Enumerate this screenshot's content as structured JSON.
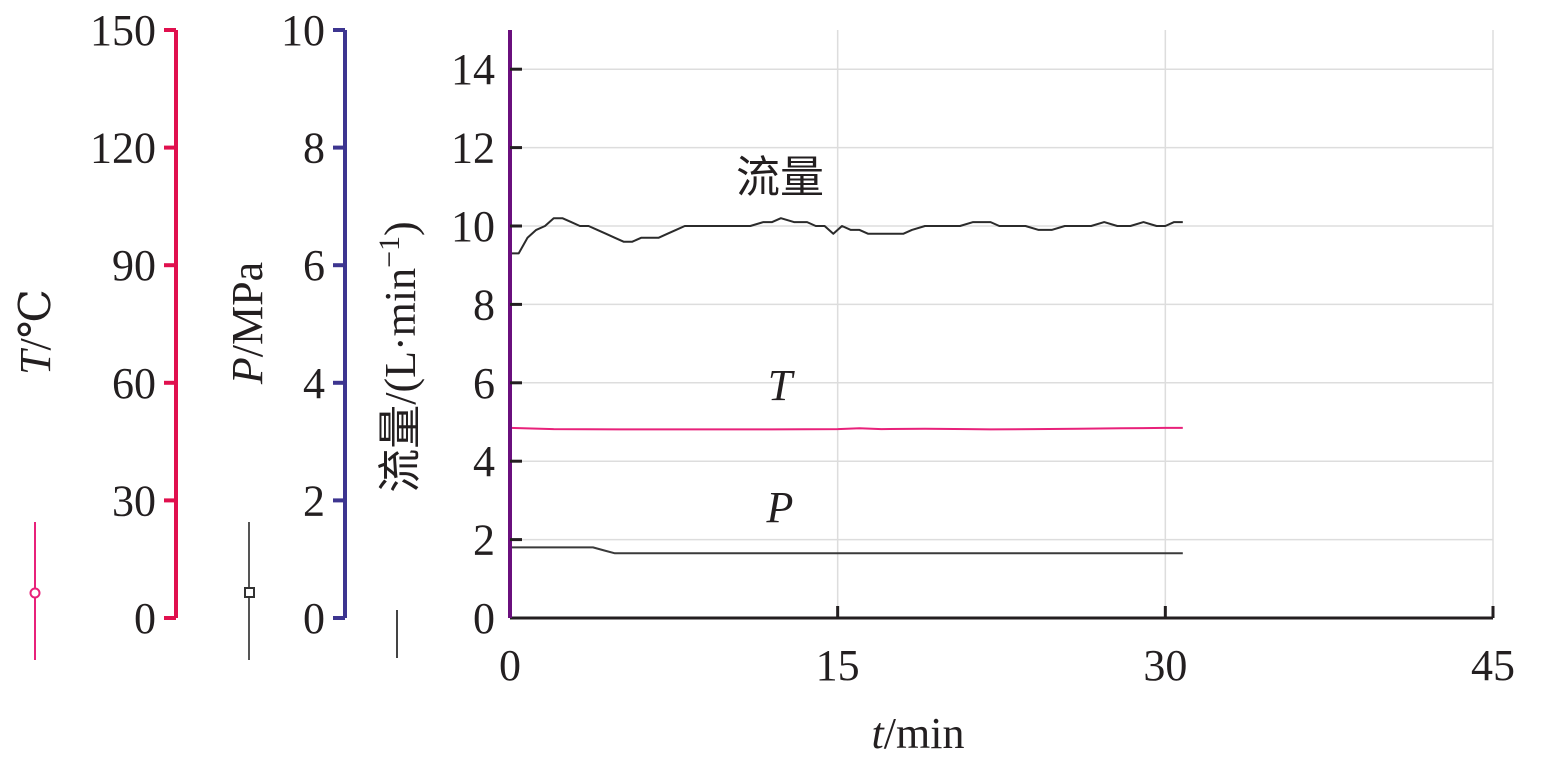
{
  "colors": {
    "T_axis": "#e0104e",
    "P_axis": "#3d3590",
    "flow_axis": "#6a0f7d",
    "T_line": "#e8217a",
    "P_line": "#3a3a3a",
    "flow_line": "#2b2b2b",
    "grid": "#dddddd"
  },
  "chart_data": {
    "type": "line",
    "title": "",
    "grid": true,
    "xlabel": {
      "symbol": "t",
      "unit": "/min"
    },
    "xlim": [
      0,
      45
    ],
    "xticks": [
      "0",
      "15",
      "30",
      "45"
    ],
    "axes": {
      "T": {
        "symbol": "T",
        "unit": "/℃",
        "ylim": [
          0,
          150
        ],
        "ticks": [
          "0",
          "30",
          "60",
          "90",
          "120",
          "150"
        ],
        "legend_marker": "circle"
      },
      "P": {
        "symbol": "P",
        "unit": "/MPa",
        "ylim": [
          0,
          10
        ],
        "ticks": [
          "0",
          "2",
          "4",
          "6",
          "8",
          "10"
        ],
        "legend_marker": "square"
      },
      "flow": {
        "label": "流量/(L·min",
        "exp": "−1",
        "close": ")",
        "ylim": [
          0,
          15
        ],
        "ticks": [
          "0",
          "2",
          "4",
          "6",
          "8",
          "10",
          "12",
          "14"
        ],
        "legend_marker": "none"
      }
    },
    "series": [
      {
        "name": "流量",
        "axis": "flow",
        "x": [
          0,
          0.4,
          0.8,
          1.2,
          1.6,
          2.0,
          2.4,
          2.8,
          3.2,
          3.6,
          4.0,
          4.4,
          4.8,
          5.2,
          5.6,
          6.0,
          6.4,
          6.8,
          7.2,
          7.6,
          8.0,
          8.4,
          9.0,
          10.0,
          11.0,
          11.6,
          12.0,
          12.4,
          13.0,
          13.6,
          14.0,
          14.4,
          14.8,
          15.2,
          15.6,
          16.0,
          16.4,
          17.0,
          17.6,
          18.0,
          18.4,
          19.0,
          19.6,
          20.0,
          20.6,
          21.2,
          21.6,
          22.0,
          22.4,
          23.0,
          23.6,
          24.2,
          24.8,
          25.4,
          26.0,
          26.6,
          27.2,
          27.8,
          28.4,
          29.0,
          29.6,
          30.0,
          30.4,
          30.8
        ],
        "values": [
          9.3,
          9.3,
          9.7,
          9.9,
          10.0,
          10.2,
          10.2,
          10.1,
          10.0,
          10.0,
          9.9,
          9.8,
          9.7,
          9.6,
          9.6,
          9.7,
          9.7,
          9.7,
          9.8,
          9.9,
          10.0,
          10.0,
          10.0,
          10.0,
          10.0,
          10.1,
          10.1,
          10.2,
          10.1,
          10.1,
          10.0,
          10.0,
          9.8,
          10.0,
          9.9,
          9.9,
          9.8,
          9.8,
          9.8,
          9.8,
          9.9,
          10.0,
          10.0,
          10.0,
          10.0,
          10.1,
          10.1,
          10.1,
          10.0,
          10.0,
          10.0,
          9.9,
          9.9,
          10.0,
          10.0,
          10.0,
          10.1,
          10.0,
          10.0,
          10.1,
          10.0,
          10.0,
          10.1,
          10.1
        ]
      },
      {
        "name": "T",
        "axis": "T",
        "x": [
          0,
          2,
          5,
          8,
          12,
          15,
          16,
          17,
          19,
          21,
          22,
          24,
          26,
          28,
          30,
          30.8
        ],
        "values": [
          48.5,
          48.2,
          48.1,
          48.1,
          48.1,
          48.2,
          48.4,
          48.2,
          48.3,
          48.2,
          48.1,
          48.2,
          48.3,
          48.4,
          48.5,
          48.5
        ]
      },
      {
        "name": "P",
        "axis": "P",
        "x": [
          0,
          2,
          3.8,
          4.3,
          4.8,
          5.5,
          10,
          15,
          20,
          25,
          30,
          30.8
        ],
        "values": [
          1.2,
          1.2,
          1.2,
          1.15,
          1.1,
          1.1,
          1.1,
          1.1,
          1.1,
          1.1,
          1.1,
          1.1
        ]
      }
    ]
  }
}
